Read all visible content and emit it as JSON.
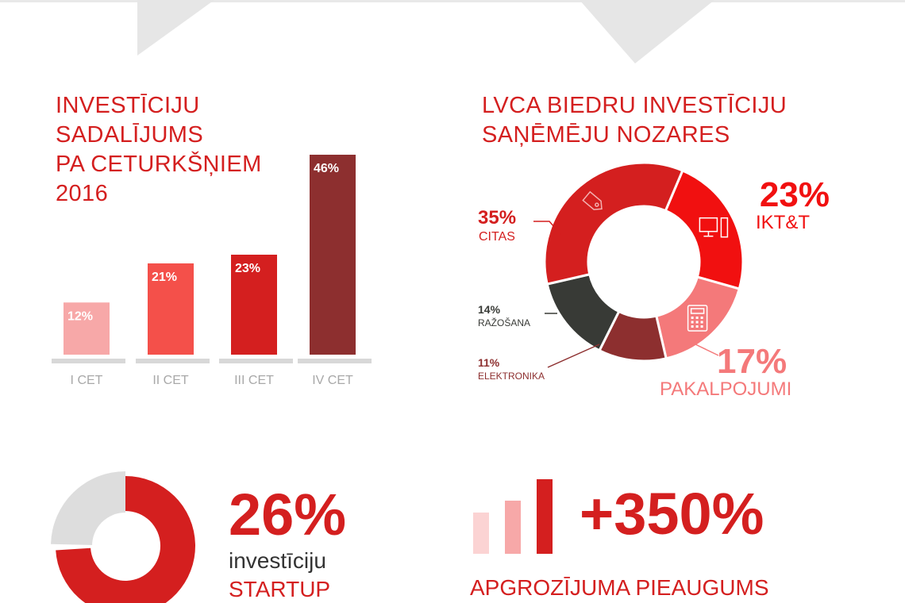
{
  "colors": {
    "red": "#d41f1f",
    "bright_red": "#f11010",
    "salmon": "#f4797a",
    "light_pink": "#f7a8a8",
    "dark_red": "#8d2f2f",
    "charcoal": "#383a36",
    "grey_bar": "#d8d8d8",
    "grey_text": "#a8a8a8"
  },
  "chart_data": [
    {
      "type": "bar",
      "title_lines": [
        "INVESTĪCIJU",
        "SADALĪJUMS",
        "PA CETURKŠŅIEM",
        "2016"
      ],
      "categories": [
        "I CET",
        "II CET",
        "III CET",
        "IV CET"
      ],
      "values": [
        12,
        21,
        23,
        46
      ],
      "value_labels": [
        "12%",
        "21%",
        "23%",
        "46%"
      ],
      "bar_colors": [
        "#f7a8a8",
        "#f4504a",
        "#d41f1f",
        "#8d2f2f"
      ],
      "ylim": [
        0,
        46
      ],
      "grid": false
    },
    {
      "type": "pie",
      "title_lines": [
        "LVCA BIEDRU INVESTĪCIJU",
        "SAŅĒMĒJU NOZARES"
      ],
      "slices": [
        {
          "name": "IKT&T",
          "value": 23,
          "label": "23%",
          "color": "#f11010",
          "icon": "computer-icon"
        },
        {
          "name": "PAKALPOJUMI",
          "value": 17,
          "label": "17%",
          "color": "#f4797a",
          "icon": "calculator-icon"
        },
        {
          "name": "ELEKTRONIKA",
          "value": 11,
          "label": "11%",
          "color": "#8d2f2f"
        },
        {
          "name": "RAŽOŠANA",
          "value": 14,
          "label": "14%",
          "color": "#383a36"
        },
        {
          "name": "CITAS",
          "value": 35,
          "label": "35%",
          "color": "#d41f1f",
          "icon": "tag-icon"
        }
      ]
    },
    {
      "type": "pie",
      "value": 26,
      "value_label": "26%",
      "text_lines": [
        "investīciju",
        "STARTUP"
      ],
      "colors": [
        "#d41f1f",
        "#dddddd"
      ]
    },
    {
      "type": "bar",
      "value_label": "+350%",
      "caption": "APGROZĪJUMA PIEAUGUMS",
      "icon": "growth-bars-icon"
    }
  ]
}
